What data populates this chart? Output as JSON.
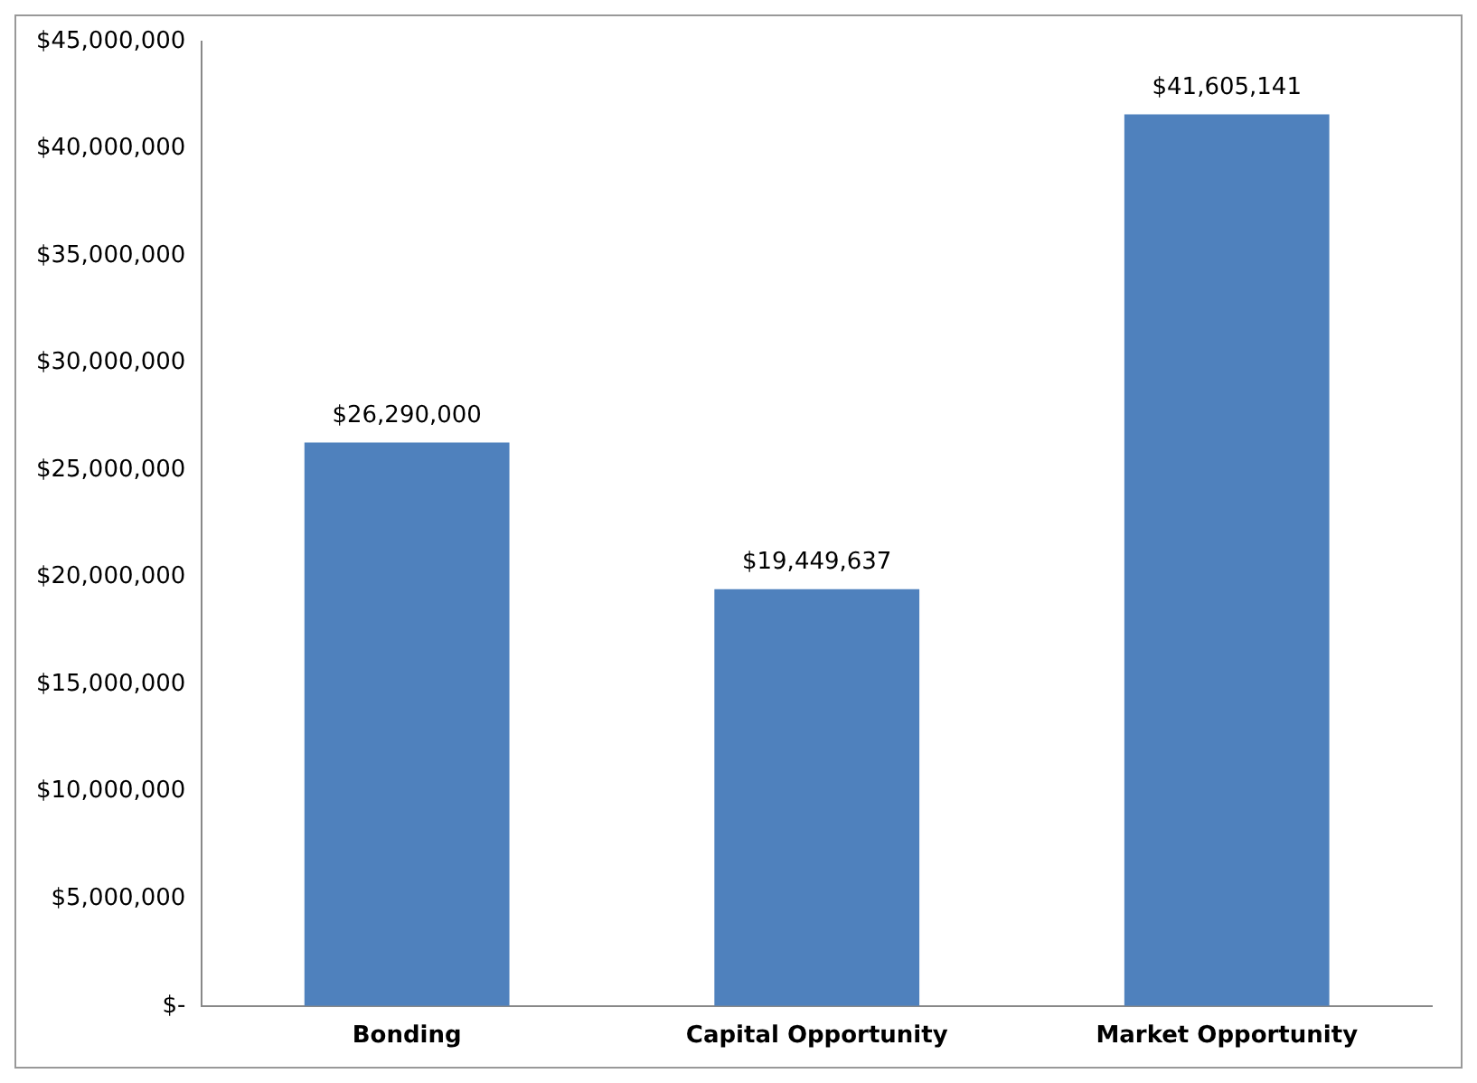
{
  "chart_data": {
    "type": "bar",
    "categories": [
      "Bonding",
      "Capital Opportunity",
      "Market Opportunity"
    ],
    "values": [
      26290000,
      19449637,
      41605141
    ],
    "color": "#4f81bd",
    "value_labels": [
      "$26,290,000",
      "$19,449,637",
      "$41,605,141"
    ],
    "ylim": [
      0,
      45000000
    ],
    "yticks": [
      {
        "value": 0,
        "label": "$-"
      },
      {
        "value": 5000000,
        "label": "$5,000,000"
      },
      {
        "value": 10000000,
        "label": "$10,000,000"
      },
      {
        "value": 15000000,
        "label": "$15,000,000"
      },
      {
        "value": 20000000,
        "label": "$20,000,000"
      },
      {
        "value": 25000000,
        "label": "$25,000,000"
      },
      {
        "value": 30000000,
        "label": "$30,000,000"
      },
      {
        "value": 35000000,
        "label": "$35,000,000"
      },
      {
        "value": 40000000,
        "label": "$40,000,000"
      },
      {
        "value": 45000000,
        "label": "$45,000,000"
      }
    ],
    "grid": false,
    "legend": false
  }
}
